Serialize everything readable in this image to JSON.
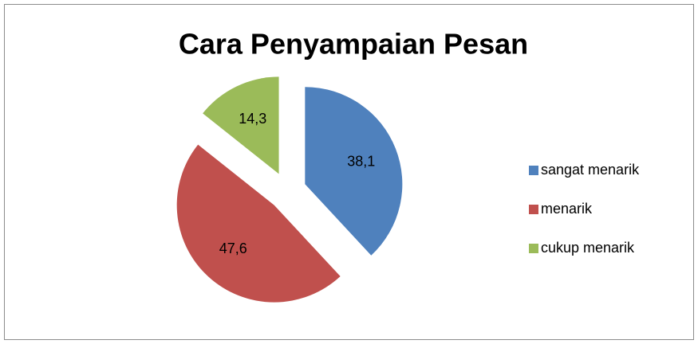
{
  "chart_data": {
    "type": "pie",
    "title": "Cara Penyampaian Pesan",
    "categories": [
      "sangat menarik",
      "menarik",
      "cukup menarik"
    ],
    "values": [
      38.1,
      47.6,
      14.3
    ],
    "value_labels": [
      "38,1",
      "47,6",
      "14,3"
    ],
    "colors": [
      "#4f81bd",
      "#c0504d",
      "#9bbb59"
    ],
    "legend": "right"
  }
}
